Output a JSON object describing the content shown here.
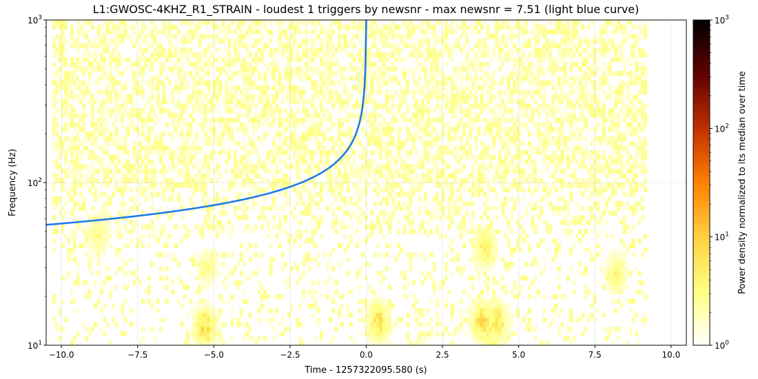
{
  "chart_data": {
    "type": "heatmap",
    "title": "L1:GWOSC-4KHZ_R1_STRAIN - loudest 1 triggers by newsnr - max newsnr = 7.51 (light blue curve)",
    "xlabel": "Time - 1257322095.580 (s)",
    "ylabel": "Frequency (Hz)",
    "xlim": [
      -10.5,
      10.5
    ],
    "ylim": [
      10,
      1000
    ],
    "yscale": "log",
    "grid": true,
    "x_ticks": [
      -10.0,
      -7.5,
      -5.0,
      -2.5,
      0.0,
      2.5,
      5.0,
      7.5,
      10.0
    ],
    "x_tick_labels": [
      "−10.0",
      "−7.5",
      "−5.0",
      "−2.5",
      "0.0",
      "2.5",
      "5.0",
      "7.5",
      "10.0"
    ],
    "y_ticks": [
      10,
      100,
      1000
    ],
    "y_tick_labels": [
      {
        "base": "10",
        "exp": "1"
      },
      {
        "base": "10",
        "exp": "2"
      },
      {
        "base": "10",
        "exp": "3"
      }
    ],
    "spectrogram": {
      "time_range": [
        -10.3,
        9.2
      ],
      "freq_range": [
        10,
        1000
      ],
      "colormap": [
        "#ffffff",
        "#ffff80",
        "#ffd040",
        "#ff8000",
        "#c03000",
        "#600000",
        "#000000"
      ]
    },
    "hotspots": [
      {
        "t": -5.3,
        "f": 13,
        "level": 1.1
      },
      {
        "t": 0.4,
        "f": 14,
        "level": 1.0
      },
      {
        "t": 3.8,
        "f": 14,
        "level": 1.05
      },
      {
        "t": 4.3,
        "f": 14,
        "level": 0.95
      },
      {
        "t": 3.9,
        "f": 40,
        "level": 0.8
      },
      {
        "t": -8.8,
        "f": 48,
        "level": 0.6
      },
      {
        "t": 8.2,
        "f": 28,
        "level": 0.7
      },
      {
        "t": 4.1,
        "f": 12,
        "level": 0.75
      },
      {
        "t": -5.2,
        "f": 30,
        "level": 0.55
      }
    ],
    "trigger_track": {
      "color": "#1f7ae8",
      "t_end": 0.0,
      "f_start": 55,
      "f_end": 1000,
      "t_start": -10.5,
      "max_newsnr": 7.51
    },
    "colorbar": {
      "label": "Power density normalized to its median over time",
      "range": [
        1,
        1000
      ],
      "scale": "log",
      "tick_labels": [
        {
          "base": "10",
          "exp": "0"
        },
        {
          "base": "10",
          "exp": "1"
        },
        {
          "base": "10",
          "exp": "2"
        },
        {
          "base": "10",
          "exp": "3"
        }
      ]
    }
  }
}
